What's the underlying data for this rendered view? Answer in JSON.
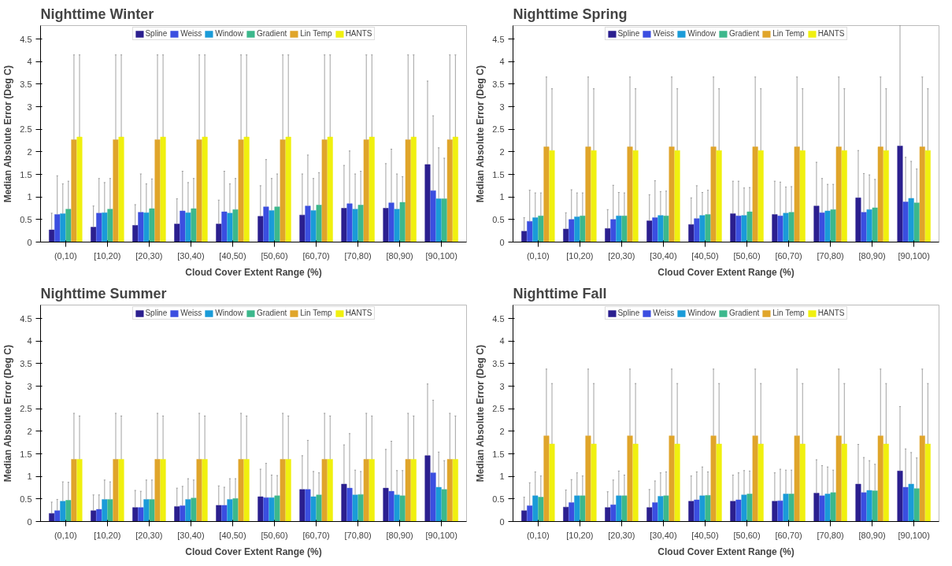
{
  "chart_data": [
    {
      "type": "bar",
      "title": "Nighttime Winter",
      "xlabel": "Cloud Cover Extent Range (%)",
      "ylabel": "Median Absolute Error (Deg C)",
      "categories": [
        "(0,10)",
        "[10,20)",
        "[20,30)",
        "[30,40)",
        "[40,50)",
        "[50,60)",
        "[60,70)",
        "[70,80)",
        "[80,90)",
        "[90,100)"
      ],
      "ylim": [
        0,
        4.8
      ],
      "yticks": [
        0,
        0.5,
        1,
        1.5,
        2,
        2.5,
        3,
        3.5,
        4,
        4.5
      ],
      "legend": "top",
      "series": [
        {
          "name": "Spline",
          "color": "#2b1f8f",
          "values": [
            0.27,
            0.33,
            0.37,
            0.4,
            0.4,
            0.57,
            0.6,
            0.75,
            0.75,
            1.72
          ],
          "errors": [
            [
              0.27,
              0.64
            ],
            [
              0.33,
              0.8
            ],
            [
              0.37,
              0.83
            ],
            [
              0.4,
              0.96
            ],
            [
              0.4,
              0.93
            ],
            [
              0.57,
              1.25
            ],
            [
              0.6,
              1.51
            ],
            [
              0.75,
              1.7
            ],
            [
              0.75,
              1.74
            ],
            [
              1.72,
              3.57
            ]
          ]
        },
        {
          "name": "Weiss",
          "color": "#3b4ee0",
          "values": [
            0.61,
            0.64,
            0.66,
            0.69,
            0.67,
            0.78,
            0.8,
            0.85,
            0.87,
            1.14
          ],
          "errors": [
            [
              0.61,
              1.47
            ],
            [
              0.64,
              1.41
            ],
            [
              0.66,
              1.51
            ],
            [
              0.69,
              1.57
            ],
            [
              0.67,
              1.57
            ],
            [
              0.78,
              1.83
            ],
            [
              0.8,
              1.93
            ],
            [
              0.85,
              2.02
            ],
            [
              0.87,
              2.06
            ],
            [
              1.14,
              2.8
            ]
          ]
        },
        {
          "name": "Window",
          "color": "#1a9bd8",
          "values": [
            0.63,
            0.65,
            0.65,
            0.65,
            0.64,
            0.7,
            0.7,
            0.73,
            0.73,
            0.96
          ],
          "errors": [
            [
              0.63,
              1.29
            ],
            [
              0.65,
              1.32
            ],
            [
              0.65,
              1.29
            ],
            [
              0.65,
              1.32
            ],
            [
              0.64,
              1.29
            ],
            [
              0.7,
              1.41
            ],
            [
              0.7,
              1.41
            ],
            [
              0.73,
              1.51
            ],
            [
              0.73,
              1.51
            ],
            [
              0.96,
              2.09
            ]
          ]
        },
        {
          "name": "Gradient",
          "color": "#3cb88c",
          "values": [
            0.73,
            0.73,
            0.74,
            0.74,
            0.72,
            0.78,
            0.82,
            0.82,
            0.88,
            0.96
          ],
          "errors": [
            [
              0.73,
              1.35
            ],
            [
              0.73,
              1.41
            ],
            [
              0.74,
              1.4
            ],
            [
              0.74,
              1.41
            ],
            [
              0.72,
              1.41
            ],
            [
              0.78,
              1.51
            ],
            [
              0.82,
              1.54
            ],
            [
              0.82,
              1.57
            ],
            [
              0.88,
              1.45
            ],
            [
              0.96,
              1.86
            ]
          ]
        },
        {
          "name": "Lin Temp",
          "color": "#e0a52a",
          "values": [
            2.27,
            2.27,
            2.27,
            2.27,
            2.27,
            2.27,
            2.27,
            2.27,
            2.27,
            2.27
          ],
          "errors": [
            [
              2.27,
              4.15
            ],
            [
              2.27,
              4.15
            ],
            [
              2.27,
              4.15
            ],
            [
              2.27,
              4.15
            ],
            [
              2.27,
              4.15
            ],
            [
              2.27,
              4.15
            ],
            [
              2.27,
              4.15
            ],
            [
              2.27,
              4.15
            ],
            [
              2.27,
              4.15
            ],
            [
              2.27,
              4.15
            ]
          ]
        },
        {
          "name": "HANTS",
          "color": "#f0f00f",
          "values": [
            2.33,
            2.33,
            2.33,
            2.33,
            2.33,
            2.33,
            2.33,
            2.33,
            2.33,
            2.33
          ],
          "errors": [
            [
              2.33,
              4.15
            ],
            [
              2.33,
              4.15
            ],
            [
              2.33,
              4.15
            ],
            [
              2.33,
              4.15
            ],
            [
              2.33,
              4.15
            ],
            [
              2.33,
              4.15
            ],
            [
              2.33,
              4.15
            ],
            [
              2.33,
              4.15
            ],
            [
              2.33,
              4.15
            ],
            [
              2.33,
              4.15
            ]
          ]
        }
      ]
    },
    {
      "type": "bar",
      "title": "Nighttime Spring",
      "xlabel": "Cloud Cover Extent Range (%)",
      "ylabel": "Median Absolute Error (Deg C)",
      "categories": [
        "(0,10)",
        "[10,20)",
        "[20,30)",
        "[30,40)",
        "[40,50)",
        "[50,60)",
        "[60,70)",
        "[70,80)",
        "[80,90)",
        "[90,100)"
      ],
      "ylim": [
        0,
        4.8
      ],
      "yticks": [
        0,
        0.5,
        1,
        1.5,
        2,
        2.5,
        3,
        3.5,
        4,
        4.5
      ],
      "legend": "top",
      "series": [
        {
          "name": "Spline",
          "color": "#2b1f8f",
          "values": [
            0.24,
            0.29,
            0.3,
            0.47,
            0.39,
            0.63,
            0.61,
            0.8,
            0.98,
            2.13
          ],
          "errors": [
            [
              0.24,
              0.54
            ],
            [
              0.29,
              0.65
            ],
            [
              0.3,
              0.72
            ],
            [
              0.47,
              1.05
            ],
            [
              0.39,
              0.98
            ],
            [
              0.63,
              1.35
            ],
            [
              0.61,
              1.35
            ],
            [
              0.8,
              1.77
            ],
            [
              0.98,
              2.03
            ],
            [
              2.13,
              4.8
            ]
          ]
        },
        {
          "name": "Weiss",
          "color": "#3b4ee0",
          "values": [
            0.46,
            0.5,
            0.5,
            0.54,
            0.52,
            0.58,
            0.58,
            0.65,
            0.66,
            0.89
          ],
          "errors": [
            [
              0.46,
              1.15
            ],
            [
              0.5,
              1.16
            ],
            [
              0.5,
              1.26
            ],
            [
              0.54,
              1.36
            ],
            [
              0.52,
              1.25
            ],
            [
              0.58,
              1.35
            ],
            [
              0.58,
              1.33
            ],
            [
              0.65,
              1.41
            ],
            [
              0.66,
              1.52
            ],
            [
              0.89,
              1.88
            ]
          ]
        },
        {
          "name": "Window",
          "color": "#1a9bd8",
          "values": [
            0.54,
            0.56,
            0.58,
            0.59,
            0.59,
            0.59,
            0.64,
            0.69,
            0.72,
            0.97
          ],
          "errors": [
            [
              0.54,
              1.09
            ],
            [
              0.56,
              1.09
            ],
            [
              0.58,
              1.1
            ],
            [
              0.59,
              1.12
            ],
            [
              0.59,
              1.1
            ],
            [
              0.59,
              1.2
            ],
            [
              0.64,
              1.22
            ],
            [
              0.69,
              1.28
            ],
            [
              0.72,
              1.49
            ],
            [
              0.97,
              1.79
            ]
          ]
        },
        {
          "name": "Gradient",
          "color": "#3cb88c",
          "values": [
            0.58,
            0.58,
            0.58,
            0.58,
            0.61,
            0.67,
            0.66,
            0.72,
            0.76,
            0.87
          ],
          "errors": [
            [
              0.58,
              1.09
            ],
            [
              0.58,
              1.09
            ],
            [
              0.58,
              1.09
            ],
            [
              0.58,
              1.13
            ],
            [
              0.61,
              1.15
            ],
            [
              0.67,
              1.21
            ],
            [
              0.66,
              1.23
            ],
            [
              0.72,
              1.28
            ],
            [
              0.76,
              1.39
            ],
            [
              0.87,
              1.62
            ]
          ]
        },
        {
          "name": "Lin Temp",
          "color": "#e0a52a",
          "values": [
            2.11,
            2.11,
            2.11,
            2.11,
            2.11,
            2.11,
            2.11,
            2.11,
            2.11,
            2.11
          ],
          "errors": [
            [
              2.11,
              3.66
            ],
            [
              2.11,
              3.66
            ],
            [
              2.11,
              3.66
            ],
            [
              2.11,
              3.66
            ],
            [
              2.11,
              3.66
            ],
            [
              2.11,
              3.66
            ],
            [
              2.11,
              3.66
            ],
            [
              2.11,
              3.66
            ],
            [
              2.11,
              3.66
            ],
            [
              2.11,
              3.66
            ]
          ]
        },
        {
          "name": "HANTS",
          "color": "#f0f00f",
          "values": [
            2.03,
            2.03,
            2.03,
            2.03,
            2.03,
            2.03,
            2.03,
            2.03,
            2.03,
            2.03
          ],
          "errors": [
            [
              2.03,
              3.4
            ],
            [
              2.03,
              3.4
            ],
            [
              2.03,
              3.4
            ],
            [
              2.03,
              3.4
            ],
            [
              2.03,
              3.4
            ],
            [
              2.03,
              3.4
            ],
            [
              2.03,
              3.4
            ],
            [
              2.03,
              3.4
            ],
            [
              2.03,
              3.4
            ],
            [
              2.03,
              3.4
            ]
          ]
        }
      ]
    },
    {
      "type": "bar",
      "title": "Nighttime Summer",
      "xlabel": "Cloud Cover Extent Range (%)",
      "ylabel": "Median Absolute Error (Deg C)",
      "categories": [
        "(0,10)",
        "[10,20)",
        "[20,30)",
        "[30,40)",
        "[40,50)",
        "[50,60)",
        "[60,70)",
        "[70,80)",
        "[80,90)",
        "[90,100)"
      ],
      "ylim": [
        0,
        4.8
      ],
      "yticks": [
        0,
        0.5,
        1,
        1.5,
        2,
        2.5,
        3,
        3.5,
        4,
        4.5
      ],
      "legend": "top",
      "series": [
        {
          "name": "Spline",
          "color": "#2b1f8f",
          "values": [
            0.18,
            0.24,
            0.31,
            0.33,
            0.36,
            0.55,
            0.71,
            0.83,
            0.74,
            1.46
          ],
          "errors": [
            [
              0.18,
              0.43
            ],
            [
              0.24,
              0.59
            ],
            [
              0.31,
              0.69
            ],
            [
              0.33,
              0.74
            ],
            [
              0.36,
              0.79
            ],
            [
              0.55,
              1.16
            ],
            [
              0.71,
              1.46
            ],
            [
              0.83,
              1.7
            ],
            [
              0.74,
              1.6
            ],
            [
              1.46,
              3.05
            ]
          ]
        },
        {
          "name": "Weiss",
          "color": "#3b4ee0",
          "values": [
            0.24,
            0.27,
            0.31,
            0.35,
            0.36,
            0.53,
            0.71,
            0.74,
            0.67,
            1.08
          ],
          "errors": [
            [
              0.24,
              0.49
            ],
            [
              0.27,
              0.59
            ],
            [
              0.31,
              0.67
            ],
            [
              0.35,
              0.78
            ],
            [
              0.36,
              0.76
            ],
            [
              0.53,
              1.29
            ],
            [
              0.71,
              1.8
            ],
            [
              0.74,
              1.95
            ],
            [
              0.67,
              1.78
            ],
            [
              1.08,
              2.69
            ]
          ]
        },
        {
          "name": "Window",
          "color": "#1a9bd8",
          "values": [
            0.45,
            0.49,
            0.49,
            0.49,
            0.49,
            0.53,
            0.55,
            0.59,
            0.59,
            0.76
          ],
          "errors": [
            [
              0.45,
              0.88
            ],
            [
              0.49,
              0.92
            ],
            [
              0.49,
              0.92
            ],
            [
              0.49,
              0.95
            ],
            [
              0.49,
              0.95
            ],
            [
              0.53,
              1.03
            ],
            [
              0.55,
              1.11
            ],
            [
              0.59,
              1.14
            ],
            [
              0.59,
              1.13
            ],
            [
              0.76,
              1.54
            ]
          ]
        },
        {
          "name": "Gradient",
          "color": "#3cb88c",
          "values": [
            0.47,
            0.49,
            0.49,
            0.52,
            0.51,
            0.57,
            0.59,
            0.6,
            0.57,
            0.71
          ],
          "errors": [
            [
              0.47,
              0.87
            ],
            [
              0.49,
              0.88
            ],
            [
              0.49,
              0.92
            ],
            [
              0.52,
              0.92
            ],
            [
              0.51,
              0.95
            ],
            [
              0.57,
              1.02
            ],
            [
              0.59,
              1.08
            ],
            [
              0.6,
              1.11
            ],
            [
              0.57,
              1.13
            ],
            [
              0.71,
              1.35
            ]
          ]
        },
        {
          "name": "Lin Temp",
          "color": "#e0a52a",
          "values": [
            1.38,
            1.38,
            1.38,
            1.38,
            1.38,
            1.38,
            1.38,
            1.38,
            1.38,
            1.38
          ],
          "errors": [
            [
              1.38,
              2.4
            ],
            [
              1.38,
              2.4
            ],
            [
              1.38,
              2.4
            ],
            [
              1.38,
              2.4
            ],
            [
              1.38,
              2.4
            ],
            [
              1.38,
              2.4
            ],
            [
              1.38,
              2.4
            ],
            [
              1.38,
              2.4
            ],
            [
              1.38,
              2.4
            ],
            [
              1.38,
              2.4
            ]
          ]
        },
        {
          "name": "HANTS",
          "color": "#f0f00f",
          "values": [
            1.38,
            1.38,
            1.38,
            1.38,
            1.38,
            1.38,
            1.38,
            1.38,
            1.38,
            1.38
          ],
          "errors": [
            [
              1.38,
              2.34
            ],
            [
              1.38,
              2.34
            ],
            [
              1.38,
              2.34
            ],
            [
              1.38,
              2.34
            ],
            [
              1.38,
              2.34
            ],
            [
              1.38,
              2.34
            ],
            [
              1.38,
              2.34
            ],
            [
              1.38,
              2.34
            ],
            [
              1.38,
              2.34
            ],
            [
              1.38,
              2.34
            ]
          ]
        }
      ]
    },
    {
      "type": "bar",
      "title": "Nighttime Fall",
      "xlabel": "Cloud Cover Extent Range (%)",
      "ylabel": "Median Absolute Error (Deg C)",
      "categories": [
        "(0,10)",
        "[10,20)",
        "[20,30)",
        "[30,40)",
        "[40,50)",
        "[50,60)",
        "[60,70)",
        "[70,80)",
        "[80,90)",
        "[90,100)"
      ],
      "ylim": [
        0,
        4.8
      ],
      "yticks": [
        0,
        0.5,
        1,
        1.5,
        2,
        2.5,
        3,
        3.5,
        4,
        4.5
      ],
      "legend": "top",
      "series": [
        {
          "name": "Spline",
          "color": "#2b1f8f",
          "values": [
            0.24,
            0.32,
            0.31,
            0.31,
            0.45,
            0.45,
            0.45,
            0.63,
            0.83,
            1.12
          ],
          "errors": [
            [
              0.24,
              0.54
            ],
            [
              0.32,
              0.7
            ],
            [
              0.31,
              0.66
            ],
            [
              0.31,
              0.71
            ],
            [
              0.45,
              1.01
            ],
            [
              0.45,
              1.03
            ],
            [
              0.45,
              1.08
            ],
            [
              0.63,
              1.37
            ],
            [
              0.83,
              1.71
            ],
            [
              1.12,
              2.55
            ]
          ]
        },
        {
          "name": "Weiss",
          "color": "#3b4ee0",
          "values": [
            0.35,
            0.42,
            0.37,
            0.42,
            0.48,
            0.48,
            0.46,
            0.57,
            0.64,
            0.76
          ],
          "errors": [
            [
              0.35,
              0.86
            ],
            [
              0.42,
              0.93
            ],
            [
              0.37,
              0.92
            ],
            [
              0.42,
              0.9
            ],
            [
              0.48,
              1.1
            ],
            [
              0.48,
              1.08
            ],
            [
              0.46,
              1.16
            ],
            [
              0.57,
              1.24
            ],
            [
              0.64,
              1.42
            ],
            [
              0.76,
              1.61
            ]
          ]
        },
        {
          "name": "Window",
          "color": "#1a9bd8",
          "values": [
            0.57,
            0.57,
            0.57,
            0.56,
            0.57,
            0.59,
            0.61,
            0.61,
            0.69,
            0.83
          ],
          "errors": [
            [
              0.57,
              1.1
            ],
            [
              0.57,
              1.08
            ],
            [
              0.57,
              1.12
            ],
            [
              0.56,
              1.08
            ],
            [
              0.57,
              1.21
            ],
            [
              0.59,
              1.13
            ],
            [
              0.61,
              1.14
            ],
            [
              0.61,
              1.21
            ],
            [
              0.69,
              1.35
            ],
            [
              0.83,
              1.53
            ]
          ]
        },
        {
          "name": "Gradient",
          "color": "#3cb88c",
          "values": [
            0.54,
            0.57,
            0.57,
            0.57,
            0.58,
            0.61,
            0.61,
            0.64,
            0.68,
            0.73
          ],
          "errors": [
            [
              0.54,
              1.01
            ],
            [
              0.57,
              1.01
            ],
            [
              0.57,
              1.03
            ],
            [
              0.57,
              1.1
            ],
            [
              0.58,
              1.1
            ],
            [
              0.61,
              1.12
            ],
            [
              0.61,
              1.14
            ],
            [
              0.64,
              1.14
            ],
            [
              0.68,
              1.27
            ],
            [
              0.73,
              1.41
            ]
          ]
        },
        {
          "name": "Lin Temp",
          "color": "#e0a52a",
          "values": [
            1.9,
            1.9,
            1.9,
            1.9,
            1.9,
            1.9,
            1.9,
            1.9,
            1.9,
            1.9
          ],
          "errors": [
            [
              1.9,
              3.38
            ],
            [
              1.9,
              3.38
            ],
            [
              1.9,
              3.38
            ],
            [
              1.9,
              3.38
            ],
            [
              1.9,
              3.38
            ],
            [
              1.9,
              3.38
            ],
            [
              1.9,
              3.38
            ],
            [
              1.9,
              3.38
            ],
            [
              1.9,
              3.38
            ],
            [
              1.9,
              3.38
            ]
          ]
        },
        {
          "name": "HANTS",
          "color": "#f0f00f",
          "values": [
            1.72,
            1.72,
            1.72,
            1.72,
            1.72,
            1.72,
            1.72,
            1.72,
            1.72,
            1.72
          ],
          "errors": [
            [
              1.72,
              3.06
            ],
            [
              1.72,
              3.06
            ],
            [
              1.72,
              3.06
            ],
            [
              1.72,
              3.06
            ],
            [
              1.72,
              3.06
            ],
            [
              1.72,
              3.06
            ],
            [
              1.72,
              3.06
            ],
            [
              1.72,
              3.06
            ],
            [
              1.72,
              3.06
            ],
            [
              1.72,
              3.06
            ]
          ]
        }
      ]
    }
  ]
}
